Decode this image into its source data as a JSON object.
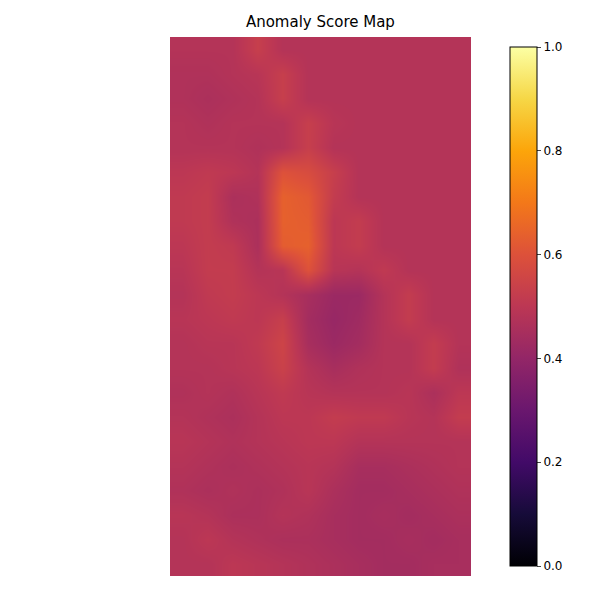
{
  "chart_data": {
    "type": "heatmap",
    "title": "Anomaly Score Map",
    "color": "inferno",
    "tick_labels": false,
    "cells": [
      [
        0.48,
        0.48,
        0.48,
        0.53,
        0.48,
        0.48,
        0.48,
        0.48,
        0.48,
        0.48,
        0.48,
        0.48
      ],
      [
        0.47,
        0.47,
        0.48,
        0.49,
        0.53,
        0.48,
        0.48,
        0.48,
        0.48,
        0.48,
        0.48,
        0.48
      ],
      [
        0.47,
        0.46,
        0.47,
        0.48,
        0.53,
        0.48,
        0.48,
        0.48,
        0.48,
        0.48,
        0.48,
        0.48
      ],
      [
        0.48,
        0.47,
        0.48,
        0.48,
        0.48,
        0.53,
        0.49,
        0.48,
        0.48,
        0.48,
        0.48,
        0.48
      ],
      [
        0.48,
        0.48,
        0.48,
        0.47,
        0.48,
        0.53,
        0.48,
        0.48,
        0.48,
        0.48,
        0.48,
        0.48
      ],
      [
        0.5,
        0.51,
        0.5,
        0.48,
        0.6,
        0.58,
        0.53,
        0.48,
        0.48,
        0.48,
        0.48,
        0.48
      ],
      [
        0.51,
        0.52,
        0.46,
        0.47,
        0.64,
        0.62,
        0.52,
        0.48,
        0.48,
        0.48,
        0.48,
        0.48
      ],
      [
        0.51,
        0.52,
        0.47,
        0.46,
        0.64,
        0.63,
        0.5,
        0.52,
        0.48,
        0.48,
        0.48,
        0.48
      ],
      [
        0.5,
        0.52,
        0.51,
        0.46,
        0.63,
        0.64,
        0.5,
        0.52,
        0.48,
        0.48,
        0.48,
        0.48
      ],
      [
        0.49,
        0.52,
        0.52,
        0.48,
        0.49,
        0.6,
        0.49,
        0.48,
        0.51,
        0.48,
        0.48,
        0.48
      ],
      [
        0.48,
        0.51,
        0.52,
        0.5,
        0.48,
        0.45,
        0.42,
        0.42,
        0.48,
        0.52,
        0.48,
        0.48
      ],
      [
        0.49,
        0.5,
        0.51,
        0.5,
        0.53,
        0.44,
        0.41,
        0.43,
        0.48,
        0.52,
        0.48,
        0.48
      ],
      [
        0.48,
        0.49,
        0.49,
        0.51,
        0.55,
        0.45,
        0.42,
        0.44,
        0.48,
        0.48,
        0.52,
        0.48
      ],
      [
        0.48,
        0.48,
        0.49,
        0.5,
        0.54,
        0.48,
        0.45,
        0.47,
        0.48,
        0.48,
        0.52,
        0.47
      ],
      [
        0.47,
        0.48,
        0.47,
        0.49,
        0.51,
        0.49,
        0.48,
        0.48,
        0.48,
        0.49,
        0.46,
        0.5
      ],
      [
        0.48,
        0.47,
        0.46,
        0.48,
        0.5,
        0.5,
        0.52,
        0.51,
        0.51,
        0.49,
        0.48,
        0.52
      ],
      [
        0.49,
        0.48,
        0.47,
        0.48,
        0.49,
        0.5,
        0.5,
        0.48,
        0.48,
        0.48,
        0.48,
        0.48
      ],
      [
        0.48,
        0.47,
        0.46,
        0.47,
        0.48,
        0.49,
        0.48,
        0.45,
        0.45,
        0.46,
        0.47,
        0.48
      ],
      [
        0.47,
        0.46,
        0.47,
        0.46,
        0.47,
        0.49,
        0.46,
        0.44,
        0.44,
        0.45,
        0.46,
        0.47
      ],
      [
        0.49,
        0.48,
        0.46,
        0.46,
        0.48,
        0.47,
        0.45,
        0.44,
        0.45,
        0.44,
        0.45,
        0.46
      ],
      [
        0.48,
        0.5,
        0.48,
        0.47,
        0.46,
        0.46,
        0.45,
        0.44,
        0.44,
        0.45,
        0.44,
        0.45
      ],
      [
        0.48,
        0.48,
        0.5,
        0.49,
        0.48,
        0.47,
        0.46,
        0.45,
        0.44,
        0.44,
        0.45,
        0.45
      ]
    ],
    "color_range": [
      0,
      1
    ],
    "color_ticks": [
      {
        "value": 0,
        "label": "0.0"
      },
      {
        "value": 0.2,
        "label": "0.2"
      },
      {
        "value": 0.4,
        "label": "0.4"
      },
      {
        "value": 0.6,
        "label": "0.6"
      },
      {
        "value": 0.8,
        "label": "0.8"
      },
      {
        "value": 1,
        "label": "1.0"
      }
    ]
  }
}
